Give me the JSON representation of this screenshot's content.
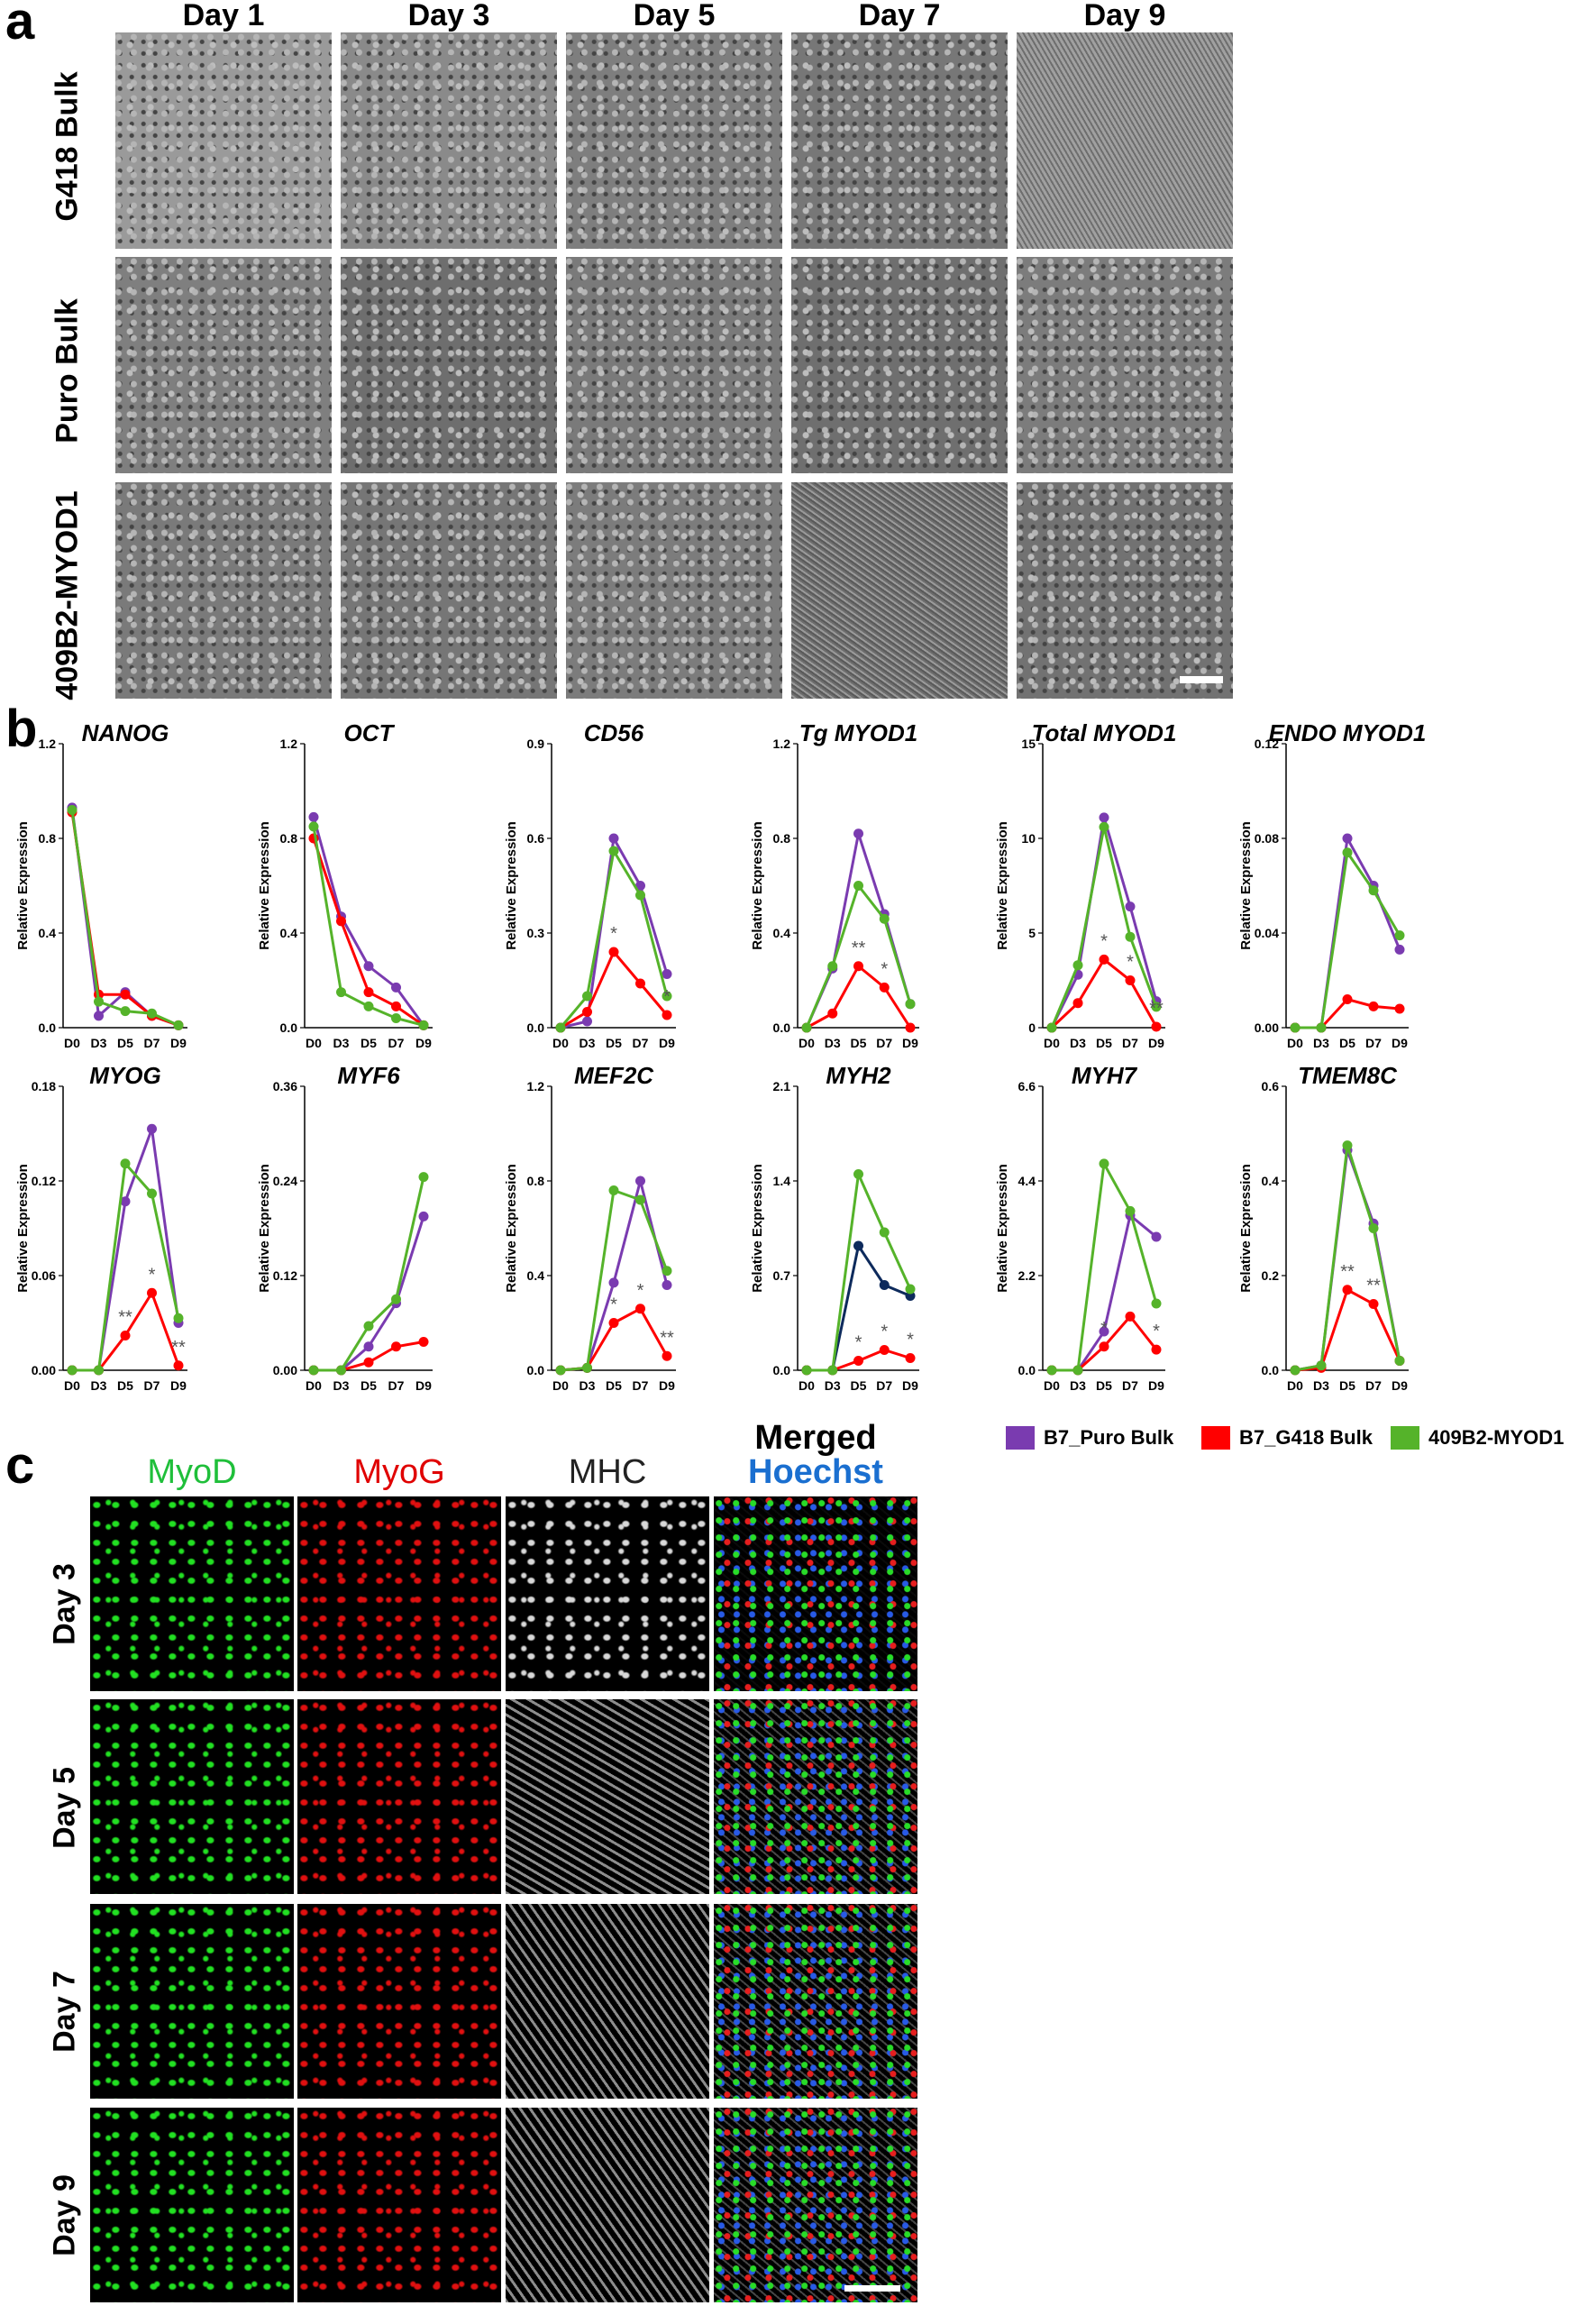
{
  "panels": {
    "a": "a",
    "b": "b",
    "c": "c"
  },
  "panel_a": {
    "days": [
      "Day 1",
      "Day 3",
      "Day 5",
      "Day 7",
      "Day 9"
    ],
    "rows": [
      "G418 Bulk",
      "Puro Bulk",
      "409B2-MYOD1"
    ]
  },
  "panel_c": {
    "channels": [
      "MyoD",
      "MyoG",
      "MHC",
      "Merged"
    ],
    "merged_sub": "Hoechst",
    "channel_colors": [
      "#1fbf3a",
      "#e00000",
      "#222222",
      "#000000"
    ],
    "hoechst_color": "#1a6fd0",
    "days": [
      "Day 3",
      "Day 5",
      "Day 7",
      "Day 9"
    ]
  },
  "legend": [
    {
      "label": "B7_Puro Bulk",
      "color": "#7a3bb0"
    },
    {
      "label": "B7_G418 Bulk",
      "color": "#ff0000"
    },
    {
      "label": "409B2-MYOD1",
      "color": "#55b32a"
    }
  ],
  "chart_data": [
    {
      "type": "line",
      "title": "NANOG",
      "ylabel": "Relative Expression",
      "ylim": [
        0,
        1.2
      ],
      "yticks": [
        "0.0",
        "0.4",
        "0.8",
        "1.2"
      ],
      "categories": [
        "D0",
        "D3",
        "D5",
        "D7",
        "D9"
      ],
      "series": [
        {
          "name": "B7_Puro Bulk",
          "values": [
            0.93,
            0.05,
            0.15,
            0.05,
            0.01
          ]
        },
        {
          "name": "B7_G418 Bulk",
          "values": [
            0.91,
            0.14,
            0.14,
            0.05,
            0.01
          ]
        },
        {
          "name": "409B2-MYOD1",
          "values": [
            0.92,
            0.11,
            0.07,
            0.06,
            0.01
          ]
        }
      ],
      "stars": []
    },
    {
      "type": "line",
      "title": "OCT",
      "ylabel": "Relative Expression",
      "ylim": [
        0,
        1.2
      ],
      "yticks": [
        "0.0",
        "0.4",
        "0.8",
        "1.2"
      ],
      "categories": [
        "D0",
        "D3",
        "D5",
        "D7",
        "D9"
      ],
      "series": [
        {
          "name": "B7_Puro Bulk",
          "values": [
            0.89,
            0.47,
            0.26,
            0.17,
            0.01
          ]
        },
        {
          "name": "B7_G418 Bulk",
          "values": [
            0.8,
            0.45,
            0.15,
            0.09,
            0.01
          ]
        },
        {
          "name": "409B2-MYOD1",
          "values": [
            0.85,
            0.15,
            0.09,
            0.04,
            0.01
          ]
        }
      ],
      "stars": []
    },
    {
      "type": "line",
      "title": "CD56",
      "ylabel": "Relative Expression",
      "ylim": [
        0,
        0.9
      ],
      "yticks": [
        "0.0",
        "0.3",
        "0.6",
        "0.9"
      ],
      "categories": [
        "D0",
        "D3",
        "D5",
        "D7",
        "D9"
      ],
      "series": [
        {
          "name": "B7_Puro Bulk",
          "values": [
            0.0,
            0.02,
            0.6,
            0.45,
            0.17
          ]
        },
        {
          "name": "B7_G418 Bulk",
          "values": [
            0.0,
            0.05,
            0.24,
            0.14,
            0.04
          ]
        },
        {
          "name": "409B2-MYOD1",
          "values": [
            0.0,
            0.1,
            0.56,
            0.42,
            0.1
          ]
        }
      ],
      "stars": [
        {
          "x": 2,
          "text": "*"
        },
        {
          "x": 4,
          "text": "*"
        }
      ]
    },
    {
      "type": "line",
      "title": "Tg MYOD1",
      "ylabel": "Relative Expression",
      "ylim": [
        0,
        1.2
      ],
      "yticks": [
        "0.0",
        "0.4",
        "0.8",
        "1.2"
      ],
      "categories": [
        "D0",
        "D3",
        "D5",
        "D7",
        "D9"
      ],
      "series": [
        {
          "name": "B7_Puro Bulk",
          "values": [
            0.0,
            0.25,
            0.82,
            0.48,
            0.1
          ]
        },
        {
          "name": "B7_G418 Bulk",
          "values": [
            0.0,
            0.06,
            0.26,
            0.17,
            0.0
          ]
        },
        {
          "name": "409B2-MYOD1",
          "values": [
            0.0,
            0.26,
            0.6,
            0.46,
            0.1
          ]
        }
      ],
      "stars": [
        {
          "x": 2,
          "text": "**"
        },
        {
          "x": 3,
          "text": "*"
        }
      ]
    },
    {
      "type": "line",
      "title": "Total MYOD1",
      "ylabel": "Relative Expression",
      "ylim": [
        0,
        15
      ],
      "yticks": [
        "0",
        "5",
        "10",
        "15"
      ],
      "categories": [
        "D0",
        "D3",
        "D5",
        "D7",
        "D9"
      ],
      "series": [
        {
          "name": "B7_Puro Bulk",
          "values": [
            0.0,
            2.8,
            11.1,
            6.4,
            1.4
          ]
        },
        {
          "name": "B7_G418 Bulk",
          "values": [
            0.0,
            1.3,
            3.6,
            2.5,
            0.05
          ]
        },
        {
          "name": "409B2-MYOD1",
          "values": [
            0.0,
            3.3,
            10.6,
            4.8,
            1.1
          ]
        }
      ],
      "stars": [
        {
          "x": 2,
          "text": "*"
        },
        {
          "x": 3,
          "text": "*"
        },
        {
          "x": 4,
          "text": "**"
        }
      ]
    },
    {
      "type": "line",
      "title": "ENDO MYOD1",
      "ylabel": "Relative Expression",
      "ylim": [
        0,
        0.12
      ],
      "yticks": [
        "0.00",
        "0.04",
        "0.08",
        "0.12"
      ],
      "categories": [
        "D0",
        "D3",
        "D5",
        "D7",
        "D9"
      ],
      "series": [
        {
          "name": "B7_Puro Bulk",
          "values": [
            0.0,
            0.0,
            0.08,
            0.06,
            0.033
          ]
        },
        {
          "name": "B7_G418 Bulk",
          "values": [
            0.0,
            0.0,
            0.012,
            0.009,
            0.008
          ]
        },
        {
          "name": "409B2-MYOD1",
          "values": [
            0.0,
            0.0,
            0.074,
            0.058,
            0.039
          ]
        }
      ],
      "stars": []
    },
    {
      "type": "line",
      "title": "MYOG",
      "ylabel": "Relative Expression",
      "ylim": [
        0,
        0.18
      ],
      "yticks": [
        "0.00",
        "0.06",
        "0.12",
        "0.18"
      ],
      "categories": [
        "D0",
        "D3",
        "D5",
        "D7",
        "D9"
      ],
      "series": [
        {
          "name": "B7_Puro Bulk",
          "values": [
            0.0,
            0.0,
            0.107,
            0.153,
            0.03
          ]
        },
        {
          "name": "B7_G418 Bulk",
          "values": [
            0.0,
            0.0,
            0.022,
            0.049,
            0.003
          ]
        },
        {
          "name": "409B2-MYOD1",
          "values": [
            0.0,
            0.0,
            0.131,
            0.112,
            0.033
          ]
        }
      ],
      "stars": [
        {
          "x": 2,
          "text": "**"
        },
        {
          "x": 3,
          "text": "*"
        },
        {
          "x": 4,
          "text": "**"
        }
      ]
    },
    {
      "type": "line",
      "title": "MYF6",
      "ylabel": "Relative Expression",
      "ylim": [
        0,
        0.36
      ],
      "yticks": [
        "0.00",
        "0.12",
        "0.24",
        "0.36"
      ],
      "categories": [
        "D0",
        "D3",
        "D5",
        "D7",
        "D9"
      ],
      "series": [
        {
          "name": "B7_Puro Bulk",
          "values": [
            0.0,
            0.0,
            0.03,
            0.085,
            0.195
          ]
        },
        {
          "name": "B7_G418 Bulk",
          "values": [
            0.0,
            0.0,
            0.01,
            0.03,
            0.036
          ]
        },
        {
          "name": "409B2-MYOD1",
          "values": [
            0.0,
            0.0,
            0.056,
            0.09,
            0.245
          ]
        }
      ],
      "stars": []
    },
    {
      "type": "line",
      "title": "MEF2C",
      "ylabel": "Relative Expression",
      "ylim": [
        0,
        1.2
      ],
      "yticks": [
        "0.0",
        "0.4",
        "0.8",
        "1.2"
      ],
      "categories": [
        "D0",
        "D3",
        "D5",
        "D7",
        "D9"
      ],
      "series": [
        {
          "name": "B7_Puro Bulk",
          "values": [
            0.0,
            0.01,
            0.37,
            0.8,
            0.36
          ]
        },
        {
          "name": "B7_G418 Bulk",
          "values": [
            0.0,
            0.01,
            0.2,
            0.26,
            0.06
          ]
        },
        {
          "name": "409B2-MYOD1",
          "values": [
            0.0,
            0.01,
            0.76,
            0.72,
            0.42
          ]
        }
      ],
      "stars": [
        {
          "x": 2,
          "text": "*"
        },
        {
          "x": 3,
          "text": "*"
        },
        {
          "x": 4,
          "text": "**"
        }
      ]
    },
    {
      "type": "line",
      "title": "MYH2",
      "ylabel": "Relative Expression",
      "ylim": [
        0,
        2.1
      ],
      "yticks": [
        "0.0",
        "0.7",
        "1.4",
        "2.1"
      ],
      "categories": [
        "D0",
        "D3",
        "D5",
        "D7",
        "D9"
      ],
      "series": [
        {
          "name": "B7_Puro Bulk",
          "values": [
            0.0,
            0.0,
            0.92,
            0.63,
            0.55
          ]
        },
        {
          "name": "B7_G418 Bulk",
          "values": [
            0.0,
            0.0,
            0.07,
            0.15,
            0.09
          ]
        },
        {
          "name": "409B2-MYOD1",
          "values": [
            0.0,
            0.0,
            1.45,
            1.02,
            0.6
          ]
        }
      ],
      "stars": [
        {
          "x": 2,
          "text": "*"
        },
        {
          "x": 3,
          "text": "*"
        },
        {
          "x": 4,
          "text": "*"
        }
      ]
    },
    {
      "type": "line",
      "title": "MYH7",
      "ylabel": "Relative Expression",
      "ylim": [
        0,
        6.6
      ],
      "yticks": [
        "0.0",
        "2.2",
        "4.4",
        "6.6"
      ],
      "categories": [
        "D0",
        "D3",
        "D5",
        "D7",
        "D9"
      ],
      "series": [
        {
          "name": "B7_Puro Bulk",
          "values": [
            0.0,
            0.0,
            0.9,
            3.6,
            3.1
          ]
        },
        {
          "name": "B7_G418 Bulk",
          "values": [
            0.0,
            0.0,
            0.55,
            1.25,
            0.48
          ]
        },
        {
          "name": "409B2-MYOD1",
          "values": [
            0.0,
            0.0,
            4.8,
            3.7,
            1.55
          ]
        }
      ],
      "stars": [
        {
          "x": 2,
          "text": "*"
        },
        {
          "x": 4,
          "text": "*"
        }
      ]
    },
    {
      "type": "line",
      "title": "TMEM8C",
      "ylabel": "Relative Expression",
      "ylim": [
        0,
        0.6
      ],
      "yticks": [
        "0.0",
        "0.2",
        "0.4",
        "0.6"
      ],
      "categories": [
        "D0",
        "D3",
        "D5",
        "D7",
        "D9"
      ],
      "series": [
        {
          "name": "B7_Puro Bulk",
          "values": [
            0.0,
            0.01,
            0.465,
            0.31,
            0.02
          ]
        },
        {
          "name": "B7_G418 Bulk",
          "values": [
            0.0,
            0.005,
            0.17,
            0.14,
            0.02
          ]
        },
        {
          "name": "409B2-MYOD1",
          "values": [
            0.0,
            0.01,
            0.475,
            0.3,
            0.02
          ]
        }
      ],
      "stars": [
        {
          "x": 2,
          "text": "**"
        },
        {
          "x": 3,
          "text": "**"
        }
      ]
    }
  ]
}
